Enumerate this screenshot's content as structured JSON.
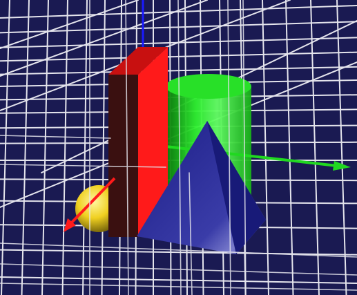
{
  "scene": {
    "background": "#1a1a52",
    "grid_color": "#e4e4ec",
    "objects": [
      {
        "name": "red-box",
        "color": "#ff1a1a",
        "shade": "#3a1010"
      },
      {
        "name": "green-cylinder",
        "color": "#28e028"
      },
      {
        "name": "blue-pyramid",
        "color": "#22248c"
      },
      {
        "name": "yellow-sphere",
        "color": "#f0d828"
      }
    ],
    "axes": [
      {
        "name": "y-axis",
        "color": "#1a1aff"
      },
      {
        "name": "x-axis",
        "color": "#20d820"
      },
      {
        "name": "z-axis",
        "color": "#ff1a1a"
      }
    ]
  }
}
